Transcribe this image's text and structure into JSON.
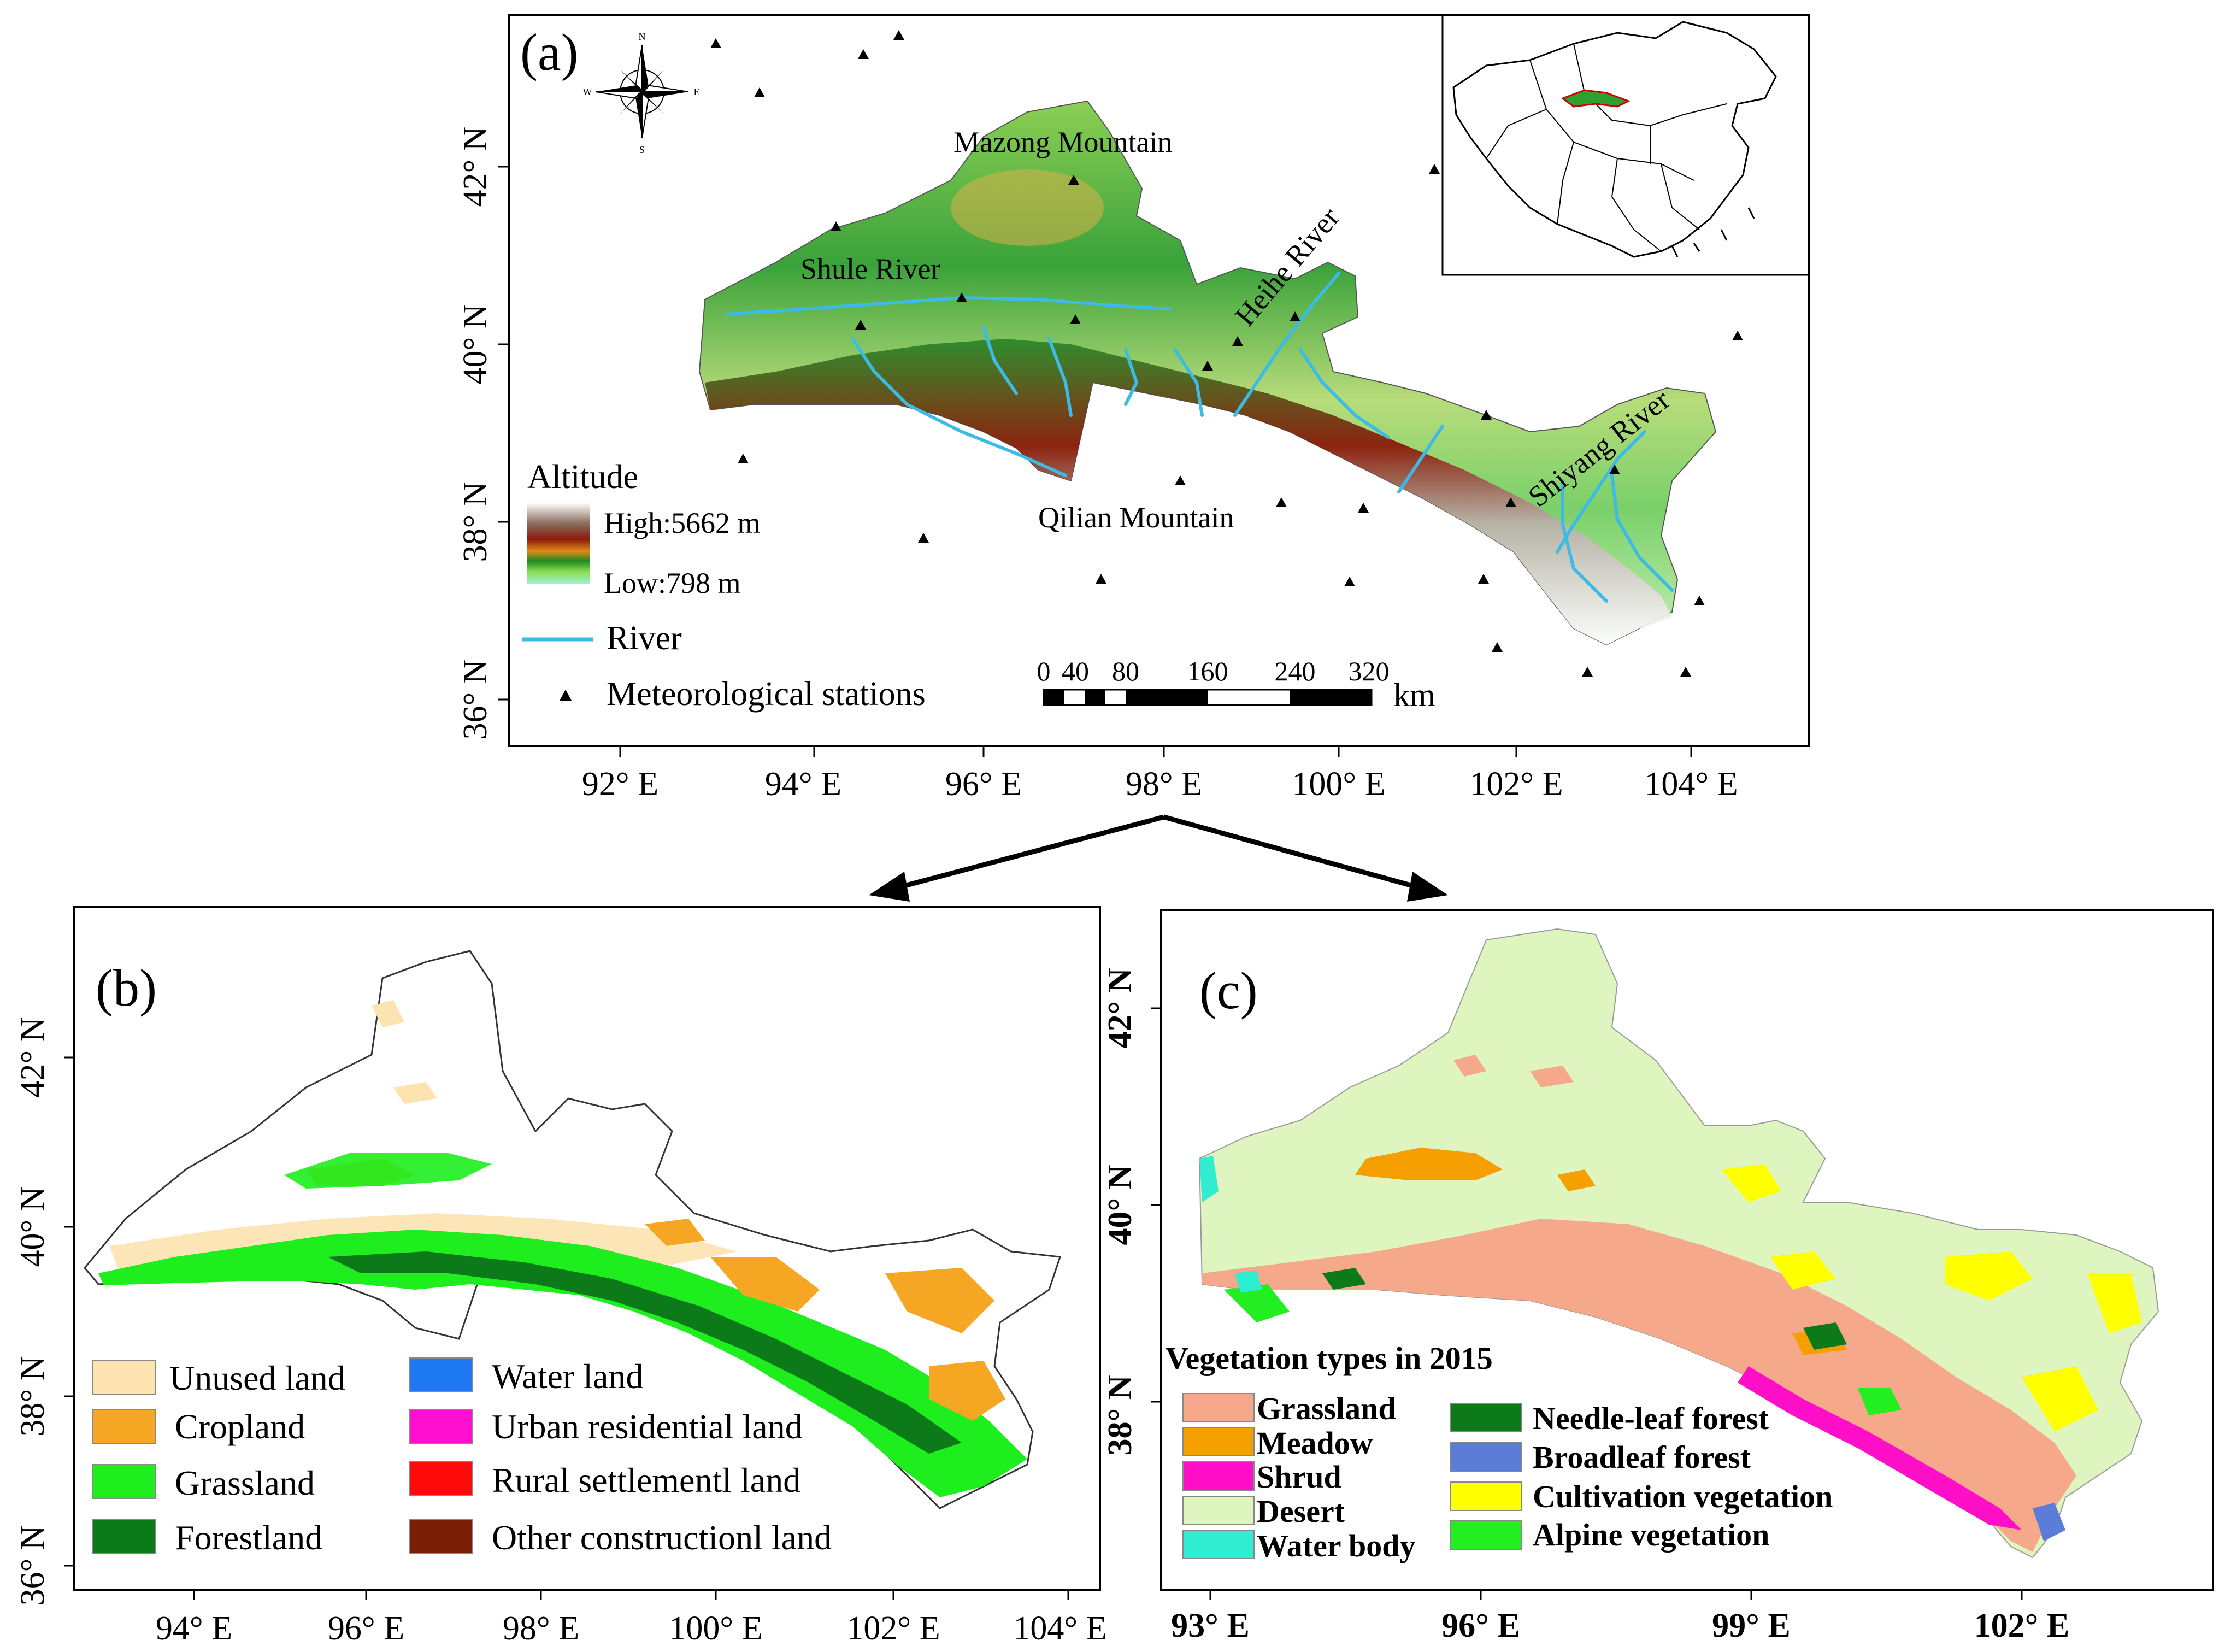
{
  "panel_a": {
    "label": "(a)",
    "x_ticks": [
      "92° E",
      "94° E",
      "96° E",
      "98° E",
      "100° E",
      "102° E",
      "104° E"
    ],
    "y_ticks": [
      "42° N",
      "40° N",
      "38° N",
      "36° N"
    ],
    "compass": {
      "n": "N",
      "s": "S",
      "e": "E",
      "w": "W"
    },
    "places": {
      "mazong": "Mazong Mountain",
      "shule": "Shule River",
      "heihe": "Heihe River",
      "qilian": "Qilian Mountain",
      "shiyang": "Shiyang River"
    },
    "legend": {
      "title": "Altitude",
      "high": "High:5662 m",
      "low": "Low:798 m",
      "river": "River",
      "stations": "Meteorological stations"
    },
    "scale_bar": {
      "labels": [
        "0",
        "40",
        "80",
        "160",
        "240",
        "320"
      ],
      "unit": "km"
    },
    "colors": {
      "river": "#3bbbe6",
      "high": "#8b1a0a",
      "mid": "#2e9a2e",
      "low": "#9ff0d0"
    }
  },
  "panel_b": {
    "label": "(b)",
    "x_ticks": [
      "94° E",
      "96° E",
      "98° E",
      "100° E",
      "102° E",
      "104° E"
    ],
    "y_ticks": [
      "42° N",
      "40° N",
      "38° N",
      "36° N"
    ],
    "legend": [
      {
        "name": "Unused land",
        "color": "#fce3b0"
      },
      {
        "name": "Water land",
        "color": "#1e78f0"
      },
      {
        "name": "Cropland",
        "color": "#f5a623"
      },
      {
        "name": "Urban residential land",
        "color": "#ff10d0"
      },
      {
        "name": "Grassland",
        "color": "#1eee1e"
      },
      {
        "name": "Rural settlementl land",
        "color": "#ff0a0a"
      },
      {
        "name": "Forestland",
        "color": "#0d7a1a"
      },
      {
        "name": "Other constructionl land",
        "color": "#7a1e05"
      }
    ]
  },
  "panel_c": {
    "label": "(c)",
    "x_ticks": [
      "93° E",
      "96° E",
      "99° E",
      "102° E"
    ],
    "y_ticks": [
      "42° N",
      "40° N",
      "38° N"
    ],
    "legend_title": "Vegetation types in 2015",
    "legend": [
      {
        "name": "Grassland",
        "color": "#f6a88a"
      },
      {
        "name": "Needle-leaf forest",
        "color": "#0d7a1a"
      },
      {
        "name": "Meadow",
        "color": "#f5a000"
      },
      {
        "name": "Broadleaf forest",
        "color": "#5b7dd8"
      },
      {
        "name": "Shrud",
        "color": "#ff10c8"
      },
      {
        "name": "Cultivation vegetation",
        "color": "#ffff00"
      },
      {
        "name": "Desert",
        "color": "#dff5c0"
      },
      {
        "name": "Alpine vegetation",
        "color": "#22ee22"
      },
      {
        "name": "Water body",
        "color": "#30ecd0"
      }
    ]
  }
}
